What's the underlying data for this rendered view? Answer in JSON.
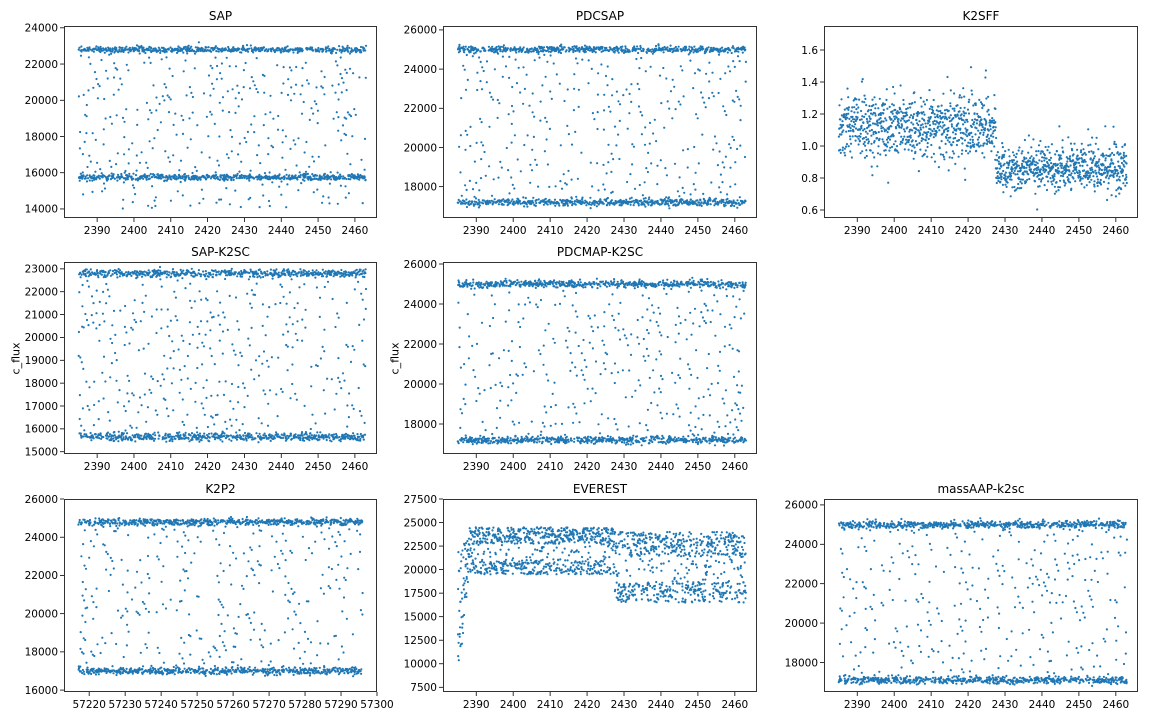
{
  "chart_data": [
    {
      "type": "scatter",
      "title": "SAP",
      "xlabel": "",
      "ylabel": "",
      "xlim": [
        2381,
        2466
      ],
      "ylim": [
        13500,
        24100
      ],
      "xticks": [
        2390,
        2400,
        2410,
        2420,
        2430,
        2440,
        2450,
        2460
      ],
      "yticks": [
        14000,
        16000,
        18000,
        20000,
        22000,
        24000
      ],
      "x_range": [
        2385,
        2463
      ],
      "bands": {
        "low": 15750,
        "high": 22800,
        "dip_below_low": 14000
      },
      "grid": false,
      "color": "#1f77b4"
    },
    {
      "type": "scatter",
      "title": "PDCSAP",
      "xlabel": "",
      "ylabel": "",
      "xlim": [
        2381,
        2466
      ],
      "ylim": [
        16400,
        26200
      ],
      "xticks": [
        2390,
        2400,
        2410,
        2420,
        2430,
        2440,
        2450,
        2460
      ],
      "yticks": [
        18000,
        20000,
        22000,
        24000,
        26000
      ],
      "x_range": [
        2385,
        2463
      ],
      "bands": {
        "low": 17200,
        "high": 25000
      },
      "grid": false,
      "color": "#1f77b4"
    },
    {
      "type": "scatter",
      "title": "K2SFF",
      "xlabel": "",
      "ylabel": "",
      "xlim": [
        2381,
        2466
      ],
      "ylim": [
        0.55,
        1.75
      ],
      "xticks": [
        2390,
        2400,
        2410,
        2420,
        2430,
        2440,
        2450,
        2460
      ],
      "yticks": [
        0.6,
        0.8,
        1.0,
        1.2,
        1.4,
        1.6
      ],
      "x_range": [
        2385,
        2463
      ],
      "segments": [
        {
          "x_from": 2385,
          "x_to": 2427.5,
          "center": 1.12,
          "spread": 0.18
        },
        {
          "x_from": 2427.5,
          "x_to": 2463,
          "center": 0.86,
          "spread": 0.13
        }
      ],
      "grid": false,
      "color": "#1f77b4"
    },
    {
      "type": "scatter",
      "title": "SAP-K2SC",
      "xlabel": "",
      "ylabel": "c_flux",
      "xlim": [
        2381,
        2466
      ],
      "ylim": [
        14900,
        23300
      ],
      "xticks": [
        2390,
        2400,
        2410,
        2420,
        2430,
        2440,
        2450,
        2460
      ],
      "yticks": [
        15000,
        16000,
        17000,
        18000,
        19000,
        20000,
        21000,
        22000,
        23000
      ],
      "x_range": [
        2385,
        2463
      ],
      "bands": {
        "low": 15650,
        "high": 22800
      },
      "grid": false,
      "color": "#1f77b4"
    },
    {
      "type": "scatter",
      "title": "PDCMAP-K2SC",
      "xlabel": "",
      "ylabel": "c_flux",
      "xlim": [
        2381,
        2466
      ],
      "ylim": [
        16500,
        26100
      ],
      "xticks": [
        2390,
        2400,
        2410,
        2420,
        2430,
        2440,
        2450,
        2460
      ],
      "yticks": [
        18000,
        20000,
        22000,
        24000,
        26000
      ],
      "x_range": [
        2385,
        2463
      ],
      "bands": {
        "low": 17200,
        "high": 25000
      },
      "grid": false,
      "color": "#1f77b4"
    },
    {
      "type": "scatter",
      "title": "K2P2",
      "xlabel": "",
      "ylabel": "",
      "xlim": [
        57213,
        57300
      ],
      "ylim": [
        15900,
        26000
      ],
      "xticks": [
        57220,
        57230,
        57240,
        57250,
        57260,
        57270,
        57280,
        57290,
        57300
      ],
      "yticks": [
        16000,
        18000,
        20000,
        22000,
        24000,
        26000
      ],
      "x_range": [
        57217,
        57296
      ],
      "bands": {
        "low": 17000,
        "high": 24800
      },
      "grid": false,
      "color": "#1f77b4"
    },
    {
      "type": "scatter",
      "title": "EVEREST",
      "xlabel": "",
      "ylabel": "",
      "xlim": [
        2381,
        2466
      ],
      "ylim": [
        7000,
        27500
      ],
      "xticks": [
        2390,
        2400,
        2410,
        2420,
        2430,
        2440,
        2450,
        2460
      ],
      "yticks": [
        7500,
        10000,
        12500,
        15000,
        17500,
        20000,
        22500,
        25000,
        27500
      ],
      "x_range": [
        2385,
        2463
      ],
      "segments": [
        {
          "x_from": 2385,
          "x_to": 2427.5,
          "low": 19500,
          "high": 24500,
          "ramp_start": 8000
        },
        {
          "x_from": 2427.5,
          "x_to": 2463,
          "low": 16500,
          "high": 24000
        }
      ],
      "grid": false,
      "color": "#1f77b4"
    },
    {
      "type": "scatter",
      "title": "massAAP-k2sc",
      "xlabel": "",
      "ylabel": "",
      "xlim": [
        2381,
        2466
      ],
      "ylim": [
        16500,
        26300
      ],
      "xticks": [
        2390,
        2400,
        2410,
        2420,
        2430,
        2440,
        2450,
        2460
      ],
      "yticks": [
        18000,
        20000,
        22000,
        24000,
        26000
      ],
      "x_range": [
        2385,
        2463
      ],
      "bands": {
        "low": 17100,
        "high": 25000
      },
      "grid": false,
      "color": "#1f77b4"
    }
  ]
}
